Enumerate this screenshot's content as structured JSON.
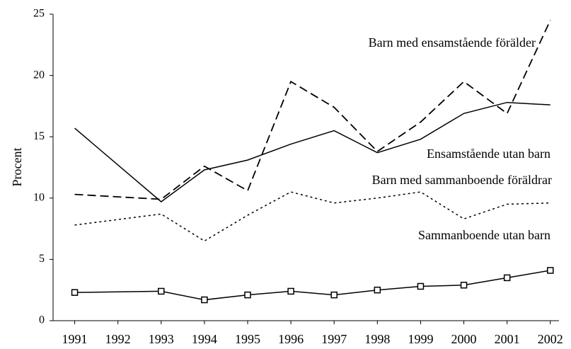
{
  "chart_data": {
    "type": "line",
    "y_label": "Procent",
    "x": [
      1991,
      1993,
      1994,
      1995,
      1996,
      1997,
      1998,
      1999,
      2000,
      2001,
      2002
    ],
    "xlim": [
      1990.5,
      2002.2
    ],
    "xticks": [
      1991,
      1992,
      1993,
      1994,
      1995,
      1996,
      1997,
      1998,
      1999,
      2000,
      2001,
      2002
    ],
    "ylim": [
      0,
      25
    ],
    "yticks": [
      0,
      5,
      10,
      15,
      20,
      25
    ],
    "grid": false,
    "series": [
      {
        "name": "Barn med ensamstående förälder",
        "color": "#000000",
        "style": "dashed",
        "values": [
          10.3,
          9.9,
          12.6,
          10.6,
          19.5,
          17.4,
          13.8,
          16.2,
          19.5,
          16.9,
          24.5
        ]
      },
      {
        "name": "Ensamstående utan barn",
        "color": "#000000",
        "style": "solid",
        "values": [
          15.7,
          9.7,
          12.3,
          13.1,
          14.4,
          15.5,
          13.7,
          14.8,
          16.9,
          17.8,
          17.6
        ]
      },
      {
        "name": "Barn med sammanboende föräldrar",
        "color": "#000000",
        "style": "dotted",
        "values": [
          7.8,
          8.7,
          6.5,
          8.6,
          10.5,
          9.6,
          10.0,
          10.5,
          8.3,
          9.5,
          9.6
        ]
      },
      {
        "name": "Sammanboende utan barn",
        "color": "#000000",
        "style": "solid",
        "marker": "square",
        "values": [
          2.3,
          2.4,
          1.7,
          2.1,
          2.4,
          2.1,
          2.5,
          2.8,
          2.9,
          3.5,
          4.1
        ]
      }
    ]
  }
}
